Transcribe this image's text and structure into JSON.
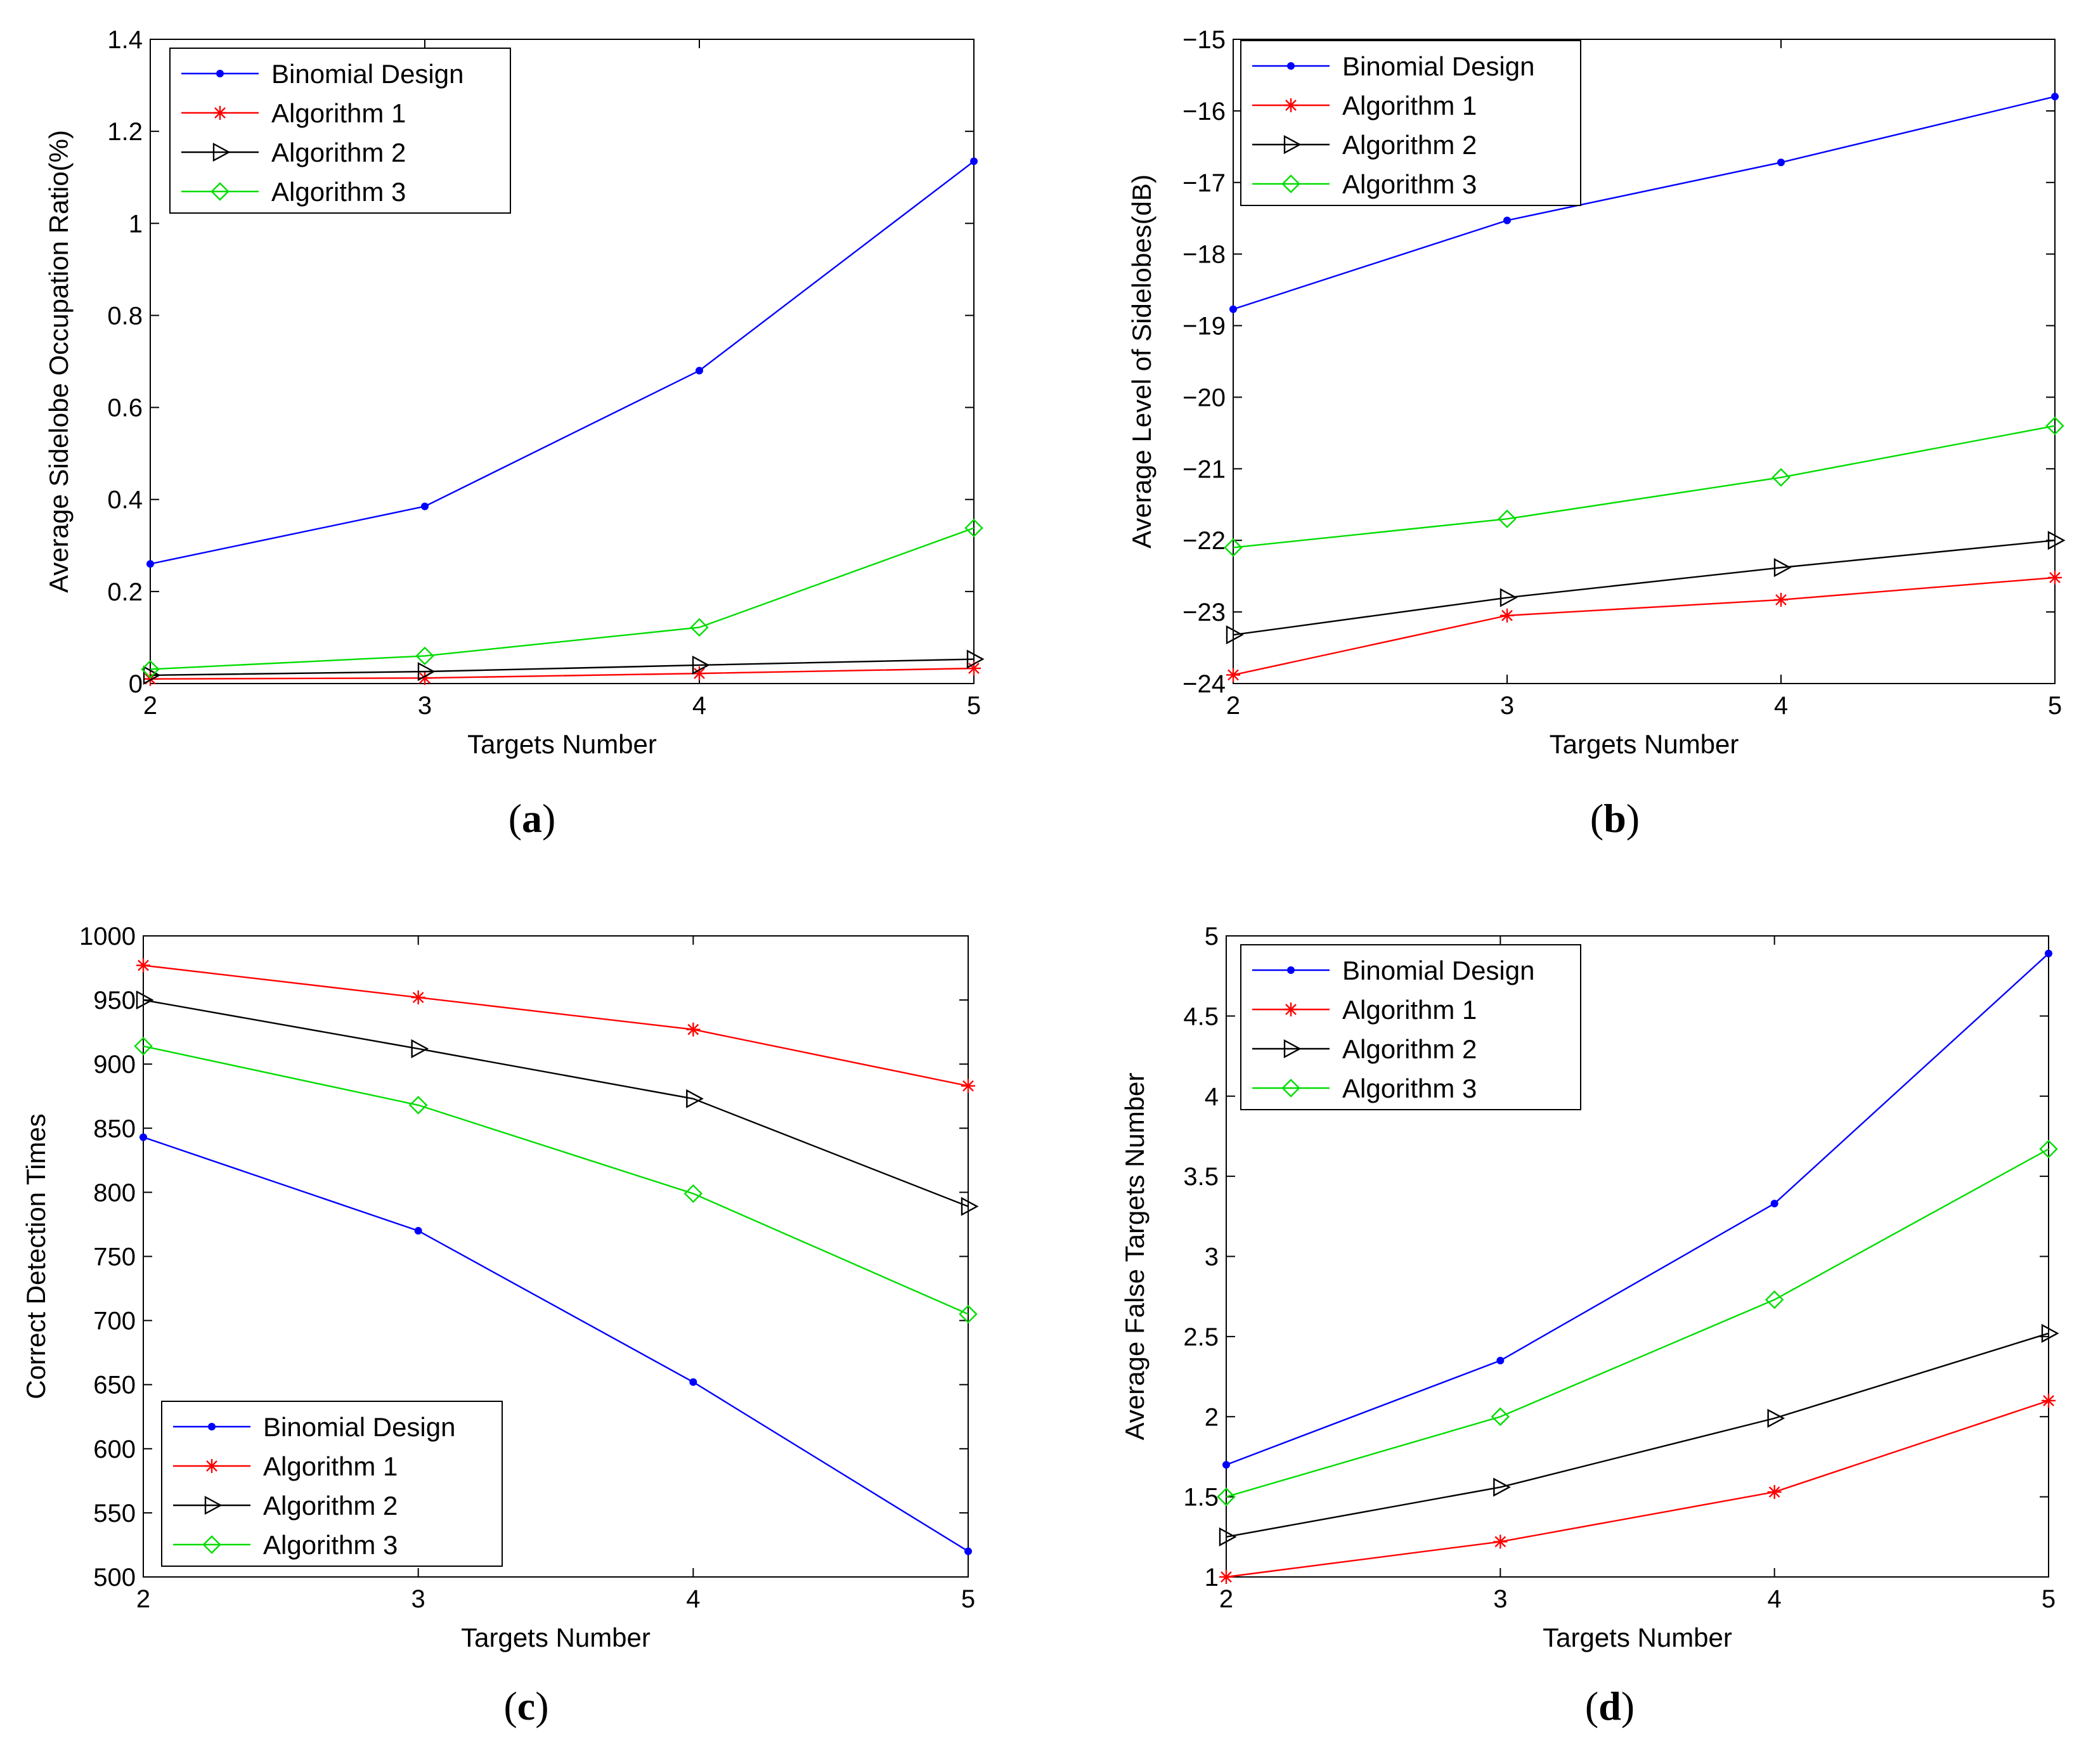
{
  "figure": {
    "panels": [
      {
        "letter": "a"
      },
      {
        "letter": "b"
      },
      {
        "letter": "c"
      },
      {
        "letter": "d"
      }
    ]
  },
  "series_styles": [
    {
      "name": "Binomial Design",
      "color": "#0000ff",
      "marker": "dot"
    },
    {
      "name": "Algorithm 1",
      "color": "#ff0000",
      "marker": "star"
    },
    {
      "name": "Algorithm 2",
      "color": "#000000",
      "marker": "triangle-right"
    },
    {
      "name": "Algorithm 3",
      "color": "#00dd00",
      "marker": "diamond"
    }
  ],
  "chart_data": [
    {
      "type": "line",
      "panel": "a",
      "xlabel": "Targets Number",
      "ylabel": "Average Sidelobe Occupation Ratio(%)",
      "x": [
        2,
        3,
        4,
        5
      ],
      "xlim": [
        2,
        5
      ],
      "ylim": [
        0,
        1.4
      ],
      "xticks": [
        2,
        3,
        4,
        5
      ],
      "yticks": [
        0,
        0.2,
        0.4,
        0.6,
        0.8,
        1,
        1.2,
        1.4
      ],
      "legend": "top-left",
      "series": [
        {
          "name": "Binomial Design",
          "values": [
            0.26,
            0.385,
            0.68,
            1.135
          ]
        },
        {
          "name": "Algorithm 1",
          "values": [
            0.01,
            0.012,
            0.022,
            0.033
          ]
        },
        {
          "name": "Algorithm 2",
          "values": [
            0.018,
            0.026,
            0.04,
            0.053
          ]
        },
        {
          "name": "Algorithm 3",
          "values": [
            0.031,
            0.06,
            0.122,
            0.338
          ]
        }
      ]
    },
    {
      "type": "line",
      "panel": "b",
      "xlabel": "Targets Number",
      "ylabel": "Average Level of Sidelobes(dB)",
      "x": [
        2,
        3,
        4,
        5
      ],
      "xlim": [
        2,
        5
      ],
      "ylim": [
        -24,
        -15
      ],
      "xticks": [
        2,
        3,
        4,
        5
      ],
      "yticks": [
        -24,
        -23,
        -22,
        -21,
        -20,
        -19,
        -18,
        -17,
        -16,
        -15
      ],
      "legend": "top-left",
      "series": [
        {
          "name": "Binomial Design",
          "values": [
            -18.77,
            -17.53,
            -16.72,
            -15.8
          ]
        },
        {
          "name": "Algorithm 1",
          "values": [
            -23.88,
            -23.05,
            -22.83,
            -22.52
          ]
        },
        {
          "name": "Algorithm 2",
          "values": [
            -23.32,
            -22.8,
            -22.38,
            -22.0
          ]
        },
        {
          "name": "Algorithm 3",
          "values": [
            -22.1,
            -21.7,
            -21.12,
            -20.4
          ]
        }
      ]
    },
    {
      "type": "line",
      "panel": "c",
      "xlabel": "Targets Number",
      "ylabel": "Correct Detection Times",
      "x": [
        2,
        3,
        4,
        5
      ],
      "xlim": [
        2,
        5
      ],
      "ylim": [
        500,
        1000
      ],
      "xticks": [
        2,
        3,
        4,
        5
      ],
      "yticks": [
        500,
        550,
        600,
        650,
        700,
        750,
        800,
        850,
        900,
        950,
        1000
      ],
      "legend": "bottom-left",
      "series": [
        {
          "name": "Binomial Design",
          "values": [
            843,
            770,
            652,
            520
          ]
        },
        {
          "name": "Algorithm 1",
          "values": [
            977,
            952,
            927,
            883
          ]
        },
        {
          "name": "Algorithm 2",
          "values": [
            950,
            912,
            873,
            789
          ]
        },
        {
          "name": "Algorithm 3",
          "values": [
            914,
            868,
            799,
            705
          ]
        }
      ]
    },
    {
      "type": "line",
      "panel": "d",
      "xlabel": "Targets Number",
      "ylabel": "Average False Targets Number",
      "x": [
        2,
        3,
        4,
        5
      ],
      "xlim": [
        2,
        5
      ],
      "ylim": [
        1,
        5
      ],
      "xticks": [
        2,
        3,
        4,
        5
      ],
      "yticks": [
        1,
        1.5,
        2,
        2.5,
        3,
        3.5,
        4,
        4.5,
        5
      ],
      "legend": "top-left",
      "series": [
        {
          "name": "Binomial Design",
          "values": [
            1.7,
            2.35,
            3.33,
            4.89
          ]
        },
        {
          "name": "Algorithm 1",
          "values": [
            1.0,
            1.22,
            1.53,
            2.1
          ]
        },
        {
          "name": "Algorithm 2",
          "values": [
            1.25,
            1.56,
            1.99,
            2.52
          ]
        },
        {
          "name": "Algorithm 3",
          "values": [
            1.5,
            2.0,
            2.73,
            3.67
          ]
        }
      ]
    }
  ]
}
